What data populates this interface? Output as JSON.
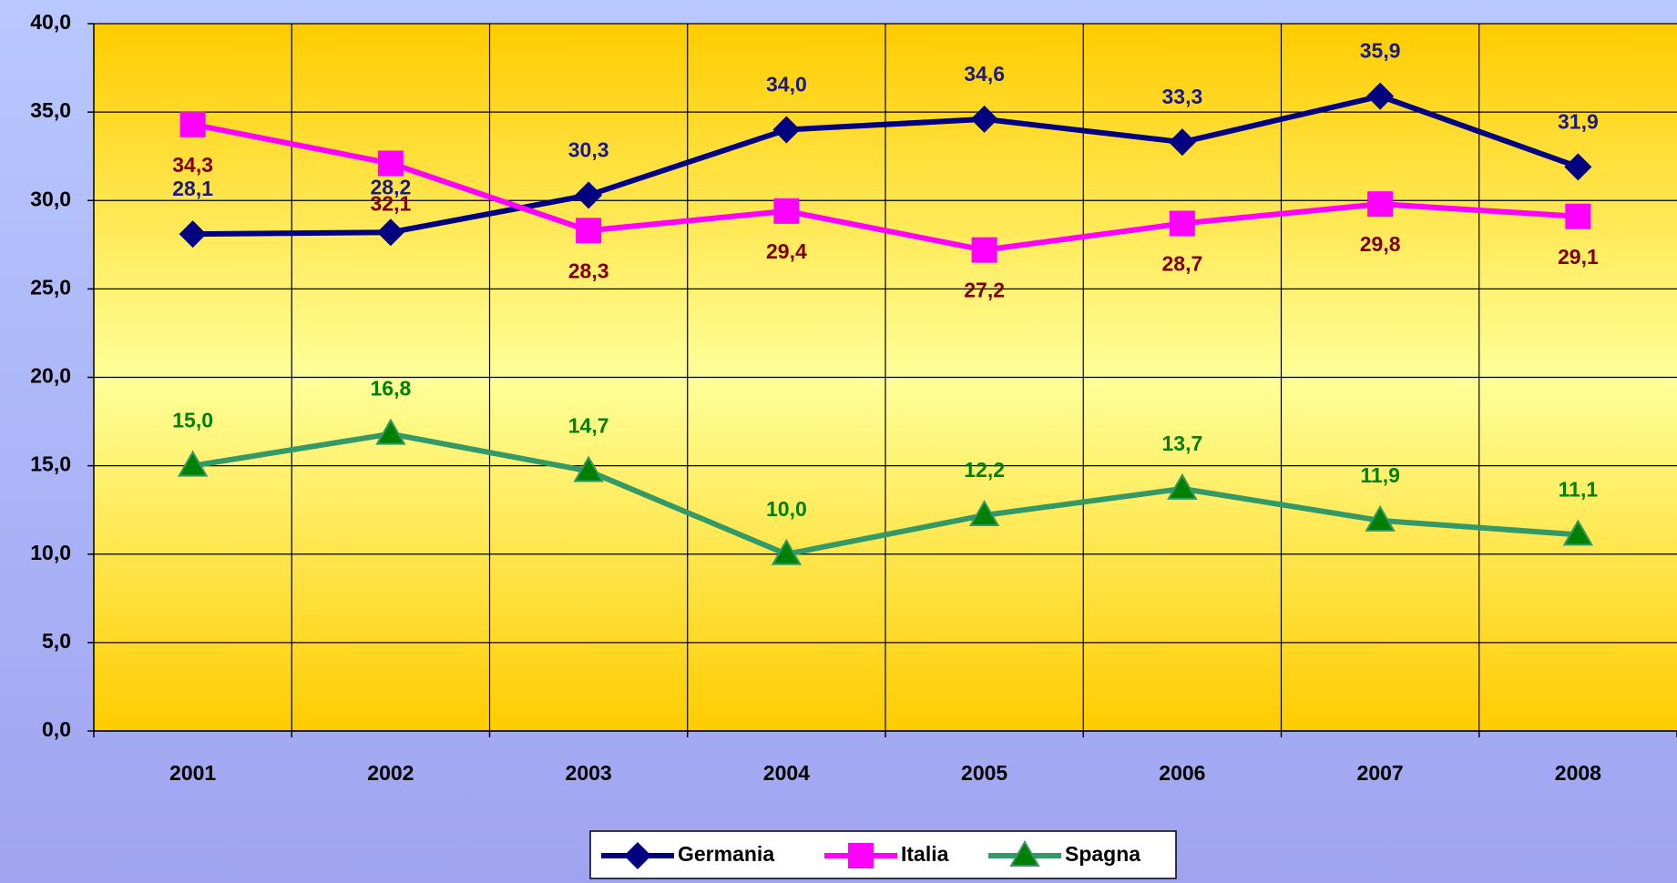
{
  "chart_data": {
    "type": "line",
    "categories": [
      "2001",
      "2002",
      "2003",
      "2004",
      "2005",
      "2006",
      "2007",
      "2008"
    ],
    "series": [
      {
        "name": "Germania",
        "color": "#000080",
        "label_color": "#1a1a80",
        "marker": "diamond",
        "label_position": "above",
        "values": [
          28.1,
          28.2,
          30.3,
          34.0,
          34.6,
          33.3,
          35.9,
          31.9
        ],
        "value_labels": [
          "28,1",
          "28,2",
          "30,3",
          "34,0",
          "34,6",
          "33,3",
          "35,9",
          "31,9"
        ]
      },
      {
        "name": "Italia",
        "color": "#ff00ff",
        "label_color": "#800000",
        "marker": "square",
        "label_position": "below",
        "values": [
          34.3,
          32.1,
          28.3,
          29.4,
          27.2,
          28.7,
          29.8,
          29.1
        ],
        "value_labels": [
          "34,3",
          "32,1",
          "28,3",
          "29,4",
          "27,2",
          "28,7",
          "29,8",
          "29,1"
        ]
      },
      {
        "name": "Spagna",
        "color": "#339966",
        "label_color": "#008000",
        "marker": "triangle",
        "label_position": "above",
        "values": [
          15.0,
          16.8,
          14.7,
          10.0,
          12.2,
          13.7,
          11.9,
          11.1
        ],
        "value_labels": [
          "15,0",
          "16,8",
          "14,7",
          "10,0",
          "12,2",
          "13,7",
          "11,9",
          "11,1"
        ]
      }
    ],
    "ylim": [
      0,
      40
    ],
    "yticks": [
      {
        "value": 0,
        "label": "0,0"
      },
      {
        "value": 5,
        "label": "5,0"
      },
      {
        "value": 10,
        "label": "10,0"
      },
      {
        "value": 15,
        "label": "15,0"
      },
      {
        "value": 20,
        "label": "20,0"
      },
      {
        "value": 25,
        "label": "25,0"
      },
      {
        "value": 30,
        "label": "30,0"
      },
      {
        "value": 35,
        "label": "35,0"
      },
      {
        "value": 40,
        "label": "40,0"
      }
    ],
    "grid": true,
    "legend": "bottom"
  }
}
